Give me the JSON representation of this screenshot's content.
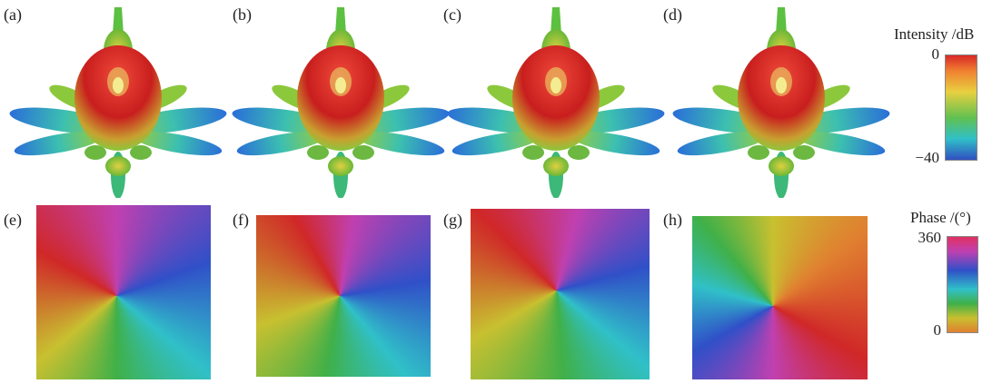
{
  "panels": [
    {
      "label": "(a)"
    },
    {
      "label": "(b)"
    },
    {
      "label": "(c)"
    },
    {
      "label": "(d)"
    },
    {
      "label": "(e)"
    },
    {
      "label": "(f)"
    },
    {
      "label": "(g)"
    },
    {
      "label": "(h)"
    }
  ],
  "colorbars": [
    {
      "title": "Intensity /dB",
      "max": "0",
      "min": "−40"
    },
    {
      "title": "Phase /(°)",
      "max": "360",
      "min": "0"
    }
  ]
}
